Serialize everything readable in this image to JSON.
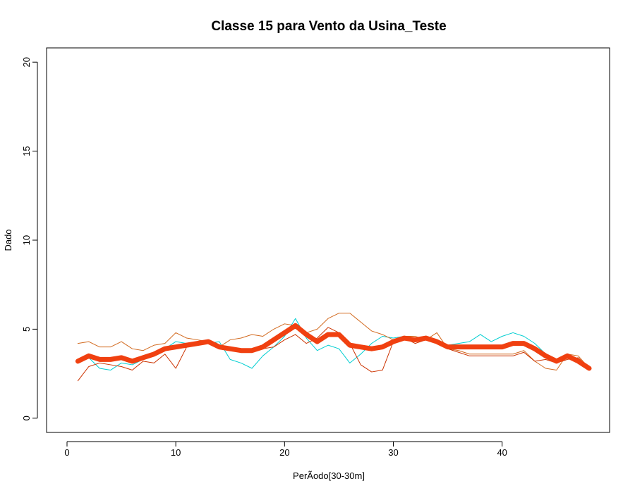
{
  "chart_data": {
    "type": "line",
    "title": "Classe  15 para Vento da Usina_Teste",
    "xlabel": "PerÃ­odo[30-30m]",
    "ylabel": "Dado",
    "xlim": [
      -1.88,
      49.88
    ],
    "ylim": [
      -0.8,
      20.8
    ],
    "xticks": [
      0,
      10,
      20,
      30,
      40
    ],
    "yticks": [
      0,
      5,
      10,
      15,
      20
    ],
    "grid": false,
    "legend": "none",
    "x": [
      1,
      2,
      3,
      4,
      5,
      6,
      7,
      8,
      9,
      10,
      11,
      12,
      13,
      14,
      15,
      16,
      17,
      18,
      19,
      20,
      21,
      22,
      23,
      24,
      25,
      26,
      27,
      28,
      29,
      30,
      31,
      32,
      33,
      34,
      35,
      36,
      37,
      38,
      39,
      40,
      41,
      42,
      43,
      44,
      45,
      46,
      47,
      48
    ],
    "series": [
      {
        "color": "#00CED1",
        "width": 1,
        "values": [
          3.2,
          3.4,
          2.8,
          2.7,
          3.1,
          3.0,
          3.3,
          3.5,
          3.9,
          4.3,
          4.2,
          4.1,
          4.2,
          4.3,
          3.3,
          3.1,
          2.8,
          3.5,
          4.0,
          4.6,
          5.6,
          4.5,
          3.8,
          4.1,
          3.9,
          3.1,
          3.6,
          4.2,
          4.6,
          4.5,
          4.6,
          4.4,
          4.6,
          4.4,
          4.1,
          4.2,
          4.3,
          4.7,
          4.3,
          4.6,
          4.8,
          4.6,
          4.2,
          3.6,
          3.2,
          3.4,
          3.1,
          2.7
        ]
      },
      {
        "color": "#D2691E",
        "width": 1,
        "values": [
          4.2,
          4.3,
          4.0,
          4.0,
          4.3,
          3.9,
          3.8,
          4.1,
          4.2,
          4.8,
          4.5,
          4.4,
          4.3,
          4.0,
          4.4,
          4.5,
          4.7,
          4.6,
          5.0,
          5.3,
          5.2,
          4.8,
          5.0,
          5.6,
          5.9,
          5.9,
          5.4,
          4.9,
          4.7,
          4.4,
          4.6,
          4.6,
          4.4,
          4.8,
          3.9,
          3.8,
          3.6,
          3.6,
          3.6,
          3.6,
          3.6,
          3.8,
          3.2,
          2.8,
          2.7,
          3.6,
          3.5,
          2.8
        ]
      },
      {
        "color": "#CC3300",
        "width": 1,
        "values": [
          2.1,
          2.9,
          3.1,
          3.0,
          2.9,
          2.7,
          3.2,
          3.1,
          3.6,
          2.8,
          4.0,
          4.1,
          4.2,
          4.0,
          3.8,
          3.8,
          3.7,
          3.9,
          4.0,
          4.4,
          4.7,
          4.2,
          4.5,
          5.1,
          4.8,
          4.2,
          3.0,
          2.6,
          2.7,
          4.3,
          4.5,
          4.2,
          4.4,
          4.4,
          3.9,
          3.7,
          3.5,
          3.5,
          3.5,
          3.5,
          3.5,
          3.7,
          3.2,
          3.3,
          3.1,
          3.3,
          3.4,
          2.8
        ]
      },
      {
        "color": "#F04010",
        "width": 7,
        "values": [
          3.2,
          3.5,
          3.3,
          3.3,
          3.4,
          3.2,
          3.4,
          3.6,
          3.9,
          4.0,
          4.1,
          4.2,
          4.3,
          4.0,
          3.9,
          3.8,
          3.8,
          4.0,
          4.4,
          4.8,
          5.2,
          4.7,
          4.3,
          4.7,
          4.7,
          4.1,
          4.0,
          3.9,
          4.0,
          4.3,
          4.5,
          4.4,
          4.5,
          4.3,
          4.0,
          4.0,
          4.0,
          4.0,
          4.0,
          4.0,
          4.2,
          4.2,
          3.9,
          3.5,
          3.2,
          3.5,
          3.2,
          2.8
        ]
      }
    ]
  }
}
